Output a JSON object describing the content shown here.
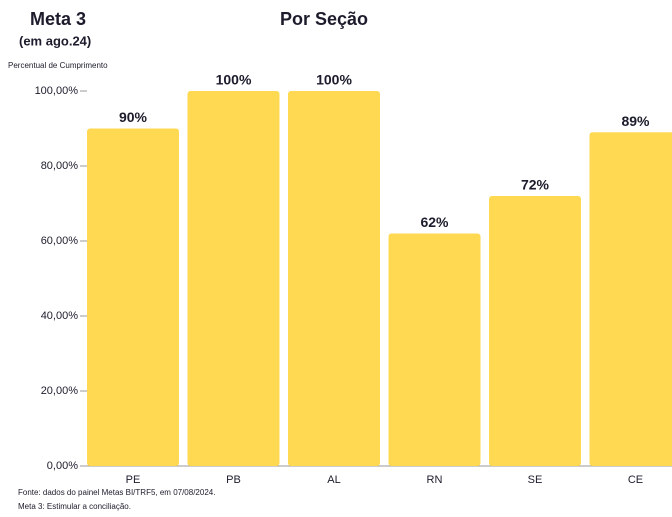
{
  "chart_data": {
    "type": "bar",
    "title": "Por Seção",
    "heading": "Meta 3",
    "subheading": "(em ago.24)",
    "y_label": "Percentual de Cumprimento",
    "categories": [
      "PE",
      "PB",
      "AL",
      "RN",
      "SE",
      "CE"
    ],
    "values": [
      90,
      100,
      100,
      62,
      72,
      89
    ],
    "value_labels": [
      "90%",
      "100%",
      "100%",
      "62%",
      "72%",
      "89%"
    ],
    "color": "#ffd952",
    "ylim": [
      0,
      100
    ],
    "yticks": [
      {
        "value": 0,
        "label": "0,00%"
      },
      {
        "value": 20,
        "label": "20,00%"
      },
      {
        "value": 40,
        "label": "40,00%"
      },
      {
        "value": 60,
        "label": "60,00%"
      },
      {
        "value": 80,
        "label": "80,00%"
      },
      {
        "value": 100,
        "label": "100,00%"
      }
    ],
    "grid": false,
    "notes": [
      "Fonte: dados  do painel Metas BI/TRF5, em 07/08/2024.",
      "Meta 3: Estimular a conciliação."
    ]
  }
}
